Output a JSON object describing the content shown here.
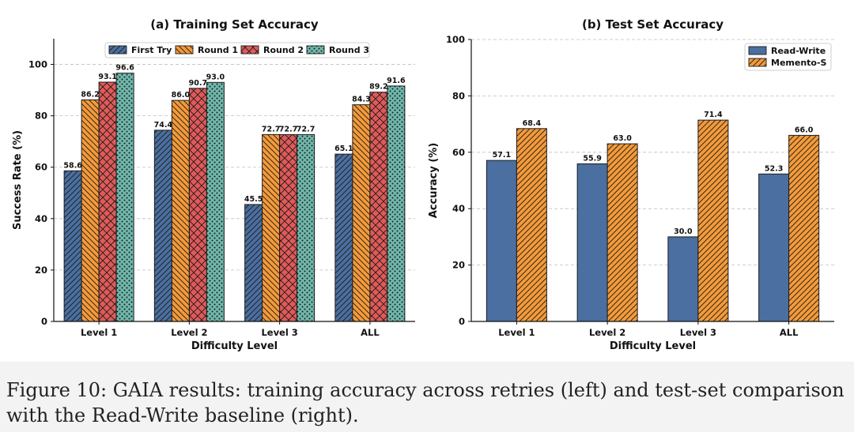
{
  "chart_data": [
    {
      "type": "bar",
      "title": "(a) Training Set Accuracy",
      "xlabel": "Difficulty Level",
      "ylabel": "Success Rate (%)",
      "ylim": [
        0,
        110
      ],
      "yticks": [
        0,
        20,
        40,
        60,
        80,
        100
      ],
      "categories": [
        "Level 1",
        "Level 2",
        "Level 3",
        "ALL"
      ],
      "legend_position": "top",
      "grid": "horizontal dashed",
      "series": [
        {
          "name": "First Try",
          "values": [
            58.6,
            74.4,
            45.5,
            65.1
          ],
          "color": "#4a6fa0",
          "hatch": "forward-diagonal"
        },
        {
          "name": "Round 1",
          "values": [
            86.2,
            86.0,
            72.7,
            84.3
          ],
          "color": "#f49a3a",
          "hatch": "back-diagonal"
        },
        {
          "name": "Round 2",
          "values": [
            93.1,
            90.7,
            72.7,
            89.2
          ],
          "color": "#e05a5a",
          "hatch": "crosshatch"
        },
        {
          "name": "Round 3",
          "values": [
            96.6,
            93.0,
            72.7,
            91.6
          ],
          "color": "#6fb8ac",
          "hatch": "dots"
        }
      ]
    },
    {
      "type": "bar",
      "title": "(b) Test Set Accuracy",
      "xlabel": "Difficulty Level",
      "ylabel": "Accuracy (%)",
      "ylim": [
        0,
        100
      ],
      "yticks": [
        0,
        20,
        40,
        60,
        80,
        100
      ],
      "categories": [
        "Level 1",
        "Level 2",
        "Level 3",
        "ALL"
      ],
      "legend_position": "top-right",
      "grid": "horizontal dashed",
      "series": [
        {
          "name": "Read-Write",
          "values": [
            57.1,
            55.9,
            30.0,
            52.3
          ],
          "color": "#4a6fa0",
          "hatch": "none"
        },
        {
          "name": "Memento-S",
          "values": [
            68.4,
            63.0,
            71.4,
            66.0
          ],
          "color": "#f49a3a",
          "hatch": "forward-diagonal"
        }
      ]
    }
  ],
  "caption": "Figure 10: GAIA results: training accuracy across retries (left) and test-set comparison with the Read-Write baseline (right)."
}
